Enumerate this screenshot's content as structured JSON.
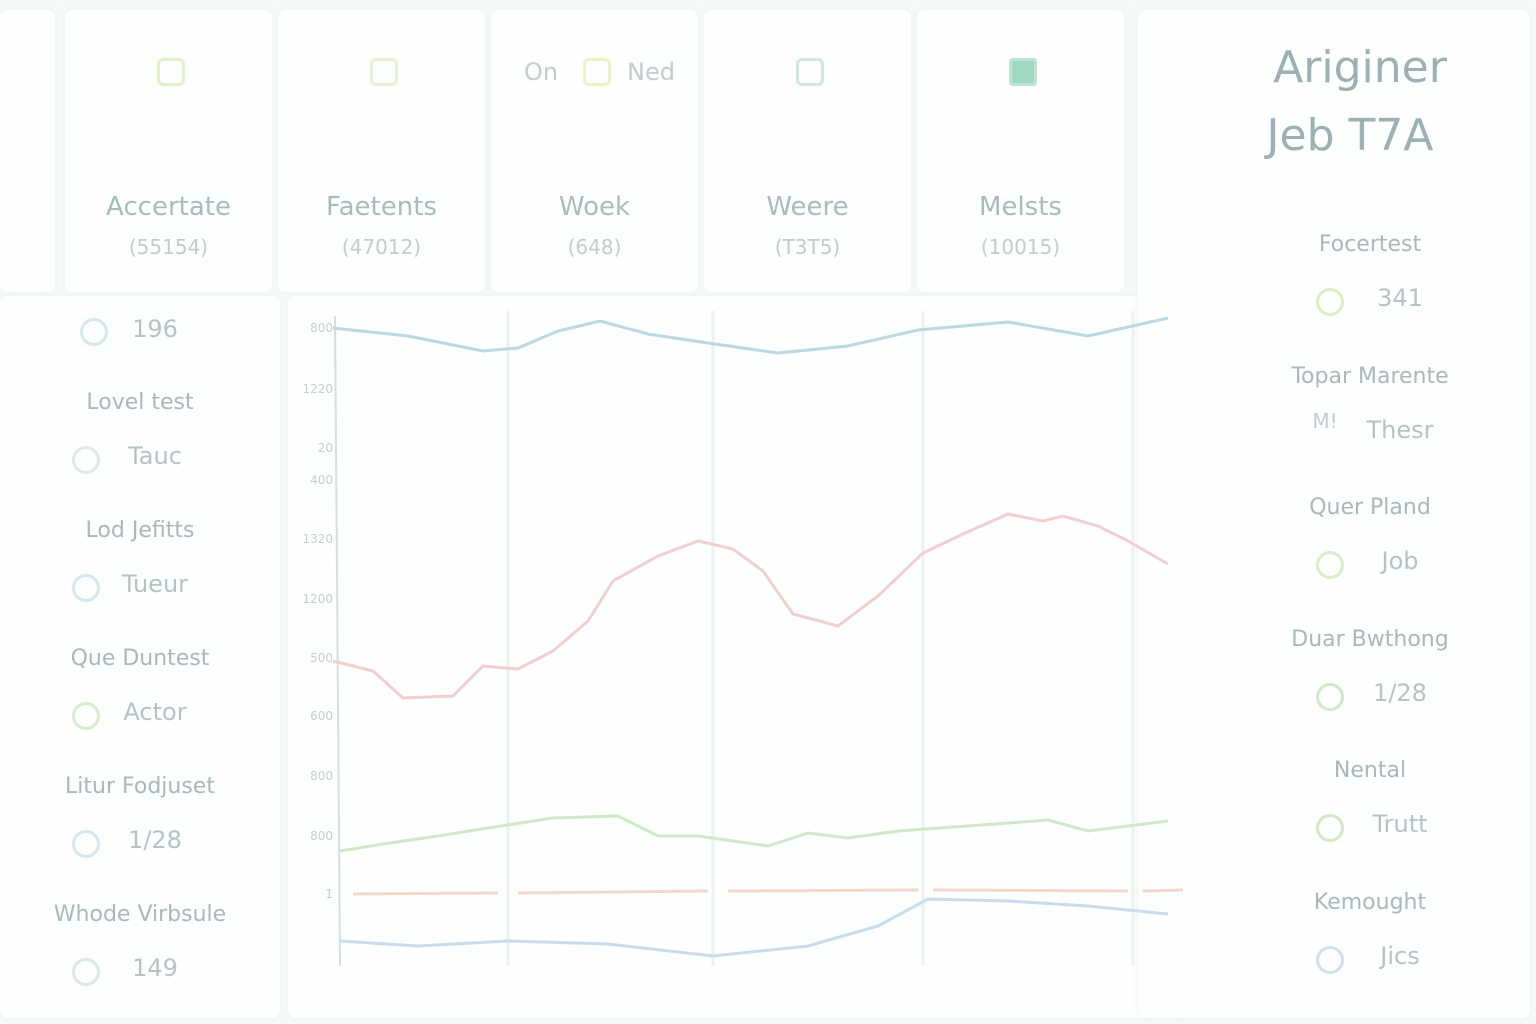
{
  "header": {
    "title": "Ariginer",
    "subtitle": "Jeb T7A"
  },
  "cards": [
    {
      "title": "Accertate",
      "sub": "(55154)"
    },
    {
      "title": "Faetents",
      "sub": "(47012)"
    },
    {
      "title": "Woek",
      "sub": "(648)",
      "left": "On",
      "right": "Ned"
    },
    {
      "title": "Weere",
      "sub": "(T3T5)"
    },
    {
      "title": "Melsts",
      "sub": "(10015)"
    }
  ],
  "sidebar": {
    "top": "196",
    "items": [
      {
        "label": "Lovel test",
        "value": "Tauc"
      },
      {
        "label": "Lod Jefitts",
        "value": "Tueur"
      },
      {
        "label": "Que Duntest",
        "value": "Actor"
      },
      {
        "label": "Litur Fodjuset",
        "value": "1/28"
      },
      {
        "label": "Whode Virbsule",
        "value": "149"
      }
    ]
  },
  "panel": {
    "items": [
      {
        "label": "Focertest",
        "value": "341"
      },
      {
        "label": "Topar Marente",
        "value": "Thesr",
        "icon": "M!"
      },
      {
        "label": "Quer Pland",
        "value": "Job"
      },
      {
        "label": "Duar Bwthong",
        "value": "1/28"
      },
      {
        "label": "Nental",
        "value": "Trutt"
      },
      {
        "label": "Kemought",
        "value": "Jics"
      }
    ]
  },
  "axis": {
    "ticks": [
      "800",
      "1220",
      "20",
      "400",
      "1320",
      "1200",
      "500",
      "600",
      "800",
      "800",
      "1"
    ]
  }
}
